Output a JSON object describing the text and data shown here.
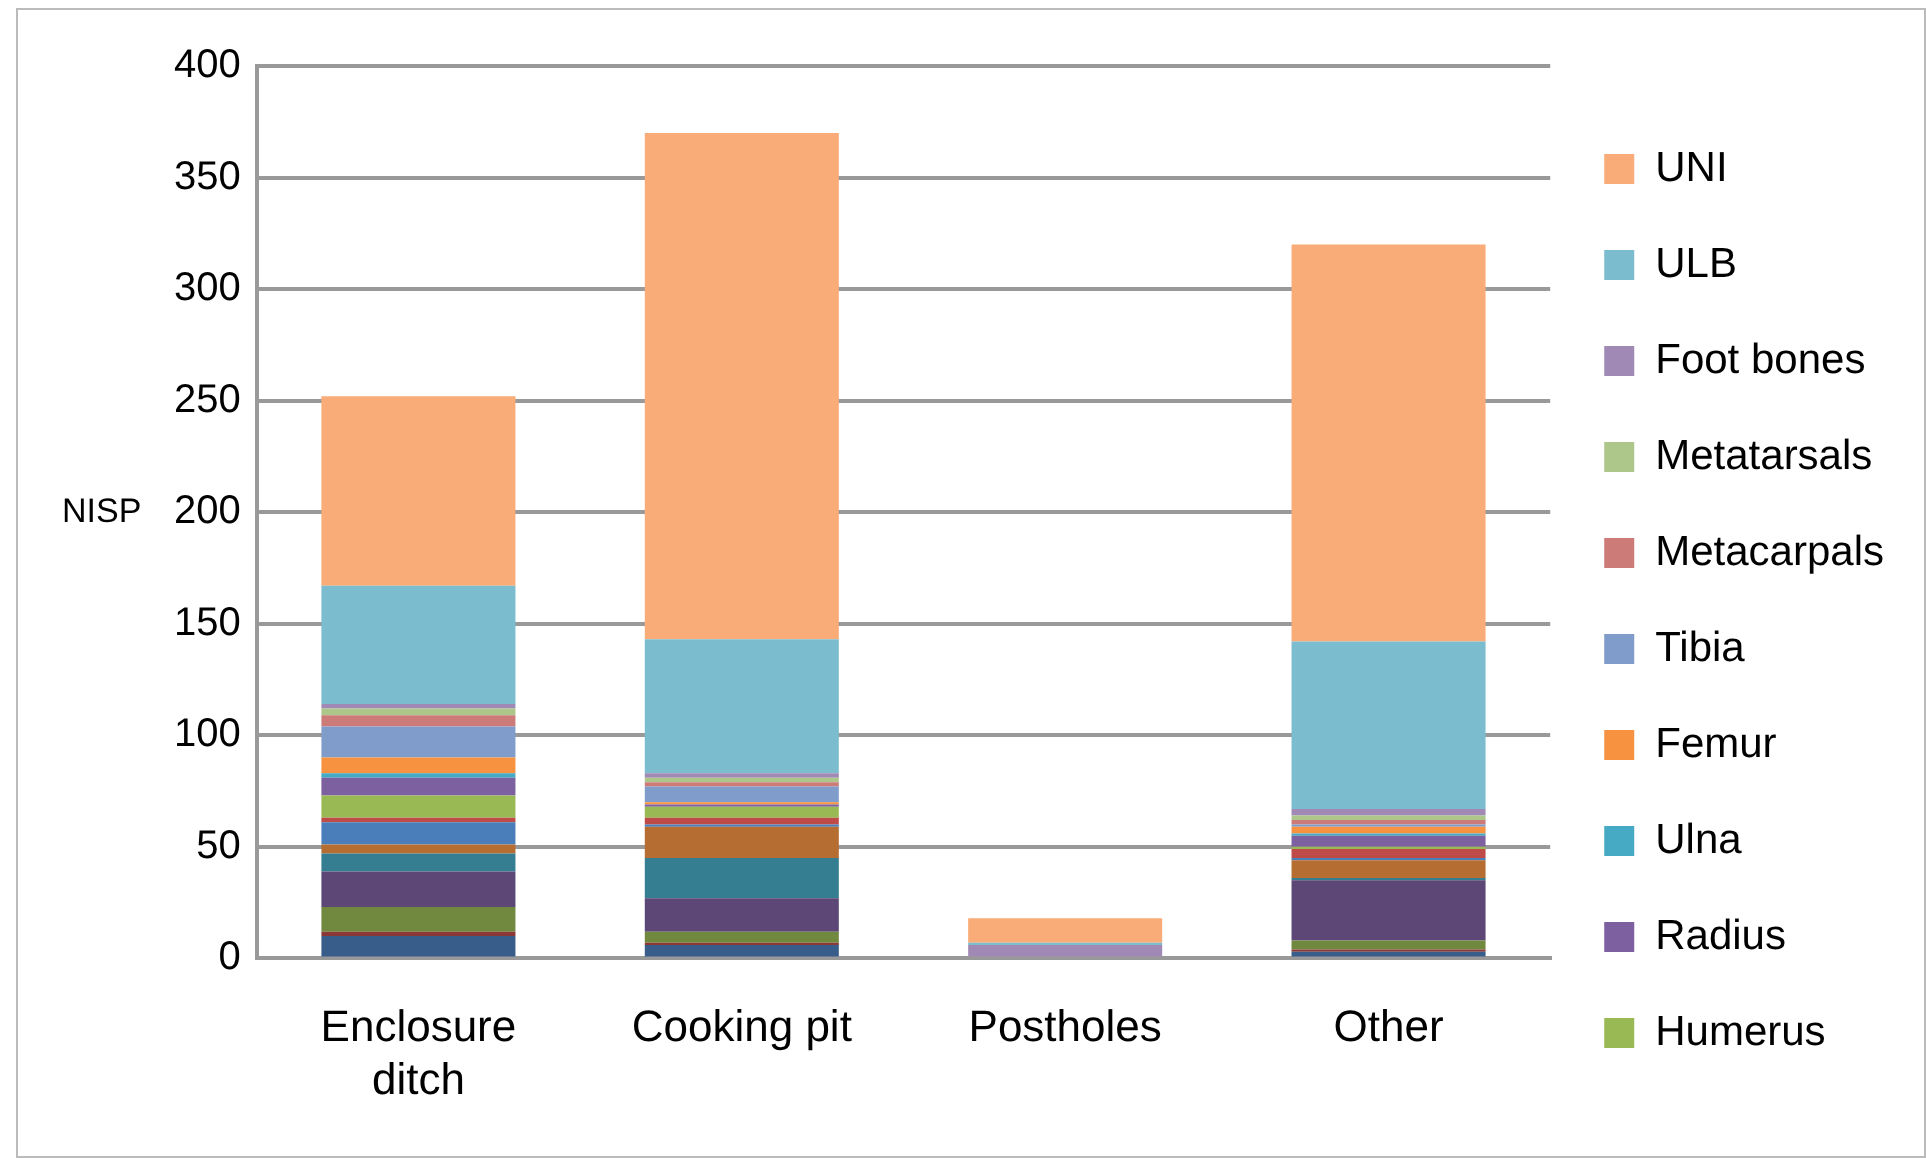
{
  "chart_data": {
    "type": "bar",
    "stacked": true,
    "ylabel": "NISP",
    "categories": [
      "Enclosure ditch",
      "Cooking pit",
      "Postholes",
      "Other"
    ],
    "ylim": [
      0,
      400
    ],
    "yticks": [
      0,
      50,
      100,
      150,
      200,
      250,
      300,
      350,
      400
    ],
    "grid": "y",
    "legend": "right",
    "series": [
      {
        "color": "#385d8a",
        "values": [
          10,
          6,
          0,
          3
        ]
      },
      {
        "color": "#8c3836",
        "values": [
          2,
          1,
          0,
          1
        ]
      },
      {
        "color": "#71893f",
        "values": [
          11,
          5,
          0,
          4
        ]
      },
      {
        "color": "#5c4776",
        "values": [
          16,
          15,
          0,
          27
        ]
      },
      {
        "color": "#357d91",
        "values": [
          8,
          18,
          0,
          1
        ]
      },
      {
        "color": "#b66d31",
        "values": [
          4,
          14,
          0,
          8
        ]
      },
      {
        "color": "#4a7ebb",
        "values": [
          10,
          1,
          0,
          1
        ]
      },
      {
        "color": "#be4b48",
        "values": [
          2,
          3,
          0,
          4
        ]
      },
      {
        "name": "Humerus",
        "color": "#98b954",
        "values": [
          10,
          5,
          0,
          1
        ]
      },
      {
        "name": "Radius",
        "color": "#7d60a0",
        "values": [
          8,
          1,
          0,
          5
        ]
      },
      {
        "name": "Ulna",
        "color": "#46aac5",
        "values": [
          2,
          0,
          0,
          1
        ]
      },
      {
        "name": "Femur",
        "color": "#f69240",
        "values": [
          7,
          1,
          0,
          3
        ]
      },
      {
        "name": "Tibia",
        "color": "#7f9ccb",
        "values": [
          14,
          7,
          0,
          1
        ]
      },
      {
        "name": "Metacarpals",
        "color": "#cd7b79",
        "values": [
          5,
          2,
          0,
          2
        ]
      },
      {
        "name": "Metatarsals",
        "color": "#adc68a",
        "values": [
          3,
          2,
          0,
          2
        ]
      },
      {
        "name": "Foot bones",
        "color": "#a08ab5",
        "values": [
          2,
          2,
          6,
          3
        ]
      },
      {
        "name": "ULB",
        "color": "#7bbccf",
        "values": [
          53,
          60,
          1,
          75
        ]
      },
      {
        "name": "UNI",
        "color": "#f9ab78",
        "values": [
          85,
          227,
          11,
          178
        ]
      }
    ]
  }
}
